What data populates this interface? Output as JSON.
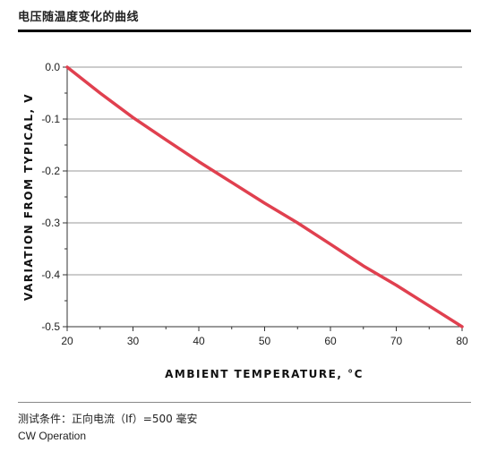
{
  "header": {
    "title": "电压随温度变化的曲线"
  },
  "footer": {
    "condition": "测试条件：正向电流（If）=500 毫安",
    "mode": "CW Operation"
  },
  "chart_data": {
    "type": "line",
    "xlabel": "AMBIENT TEMPERATURE, °C",
    "ylabel": "VARIATION FROM TYPICAL, V",
    "xlim": [
      20,
      80
    ],
    "ylim": [
      -0.5,
      0.0
    ],
    "xticks": [
      "20",
      "30",
      "40",
      "50",
      "60",
      "70",
      "80"
    ],
    "yticks": [
      "0.0",
      "-0.1",
      "-0.2",
      "-0.3",
      "-0.4",
      "-0.5"
    ],
    "grid": "horizontal",
    "series": [
      {
        "color": "#e0404f",
        "x": [
          20,
          25,
          30,
          35,
          40,
          45,
          50,
          55,
          60,
          65,
          70,
          75,
          80
        ],
        "y": [
          0.0,
          -0.05,
          -0.097,
          -0.14,
          -0.182,
          -0.222,
          -0.262,
          -0.3,
          -0.341,
          -0.383,
          -0.42,
          -0.46,
          -0.5
        ]
      }
    ]
  }
}
